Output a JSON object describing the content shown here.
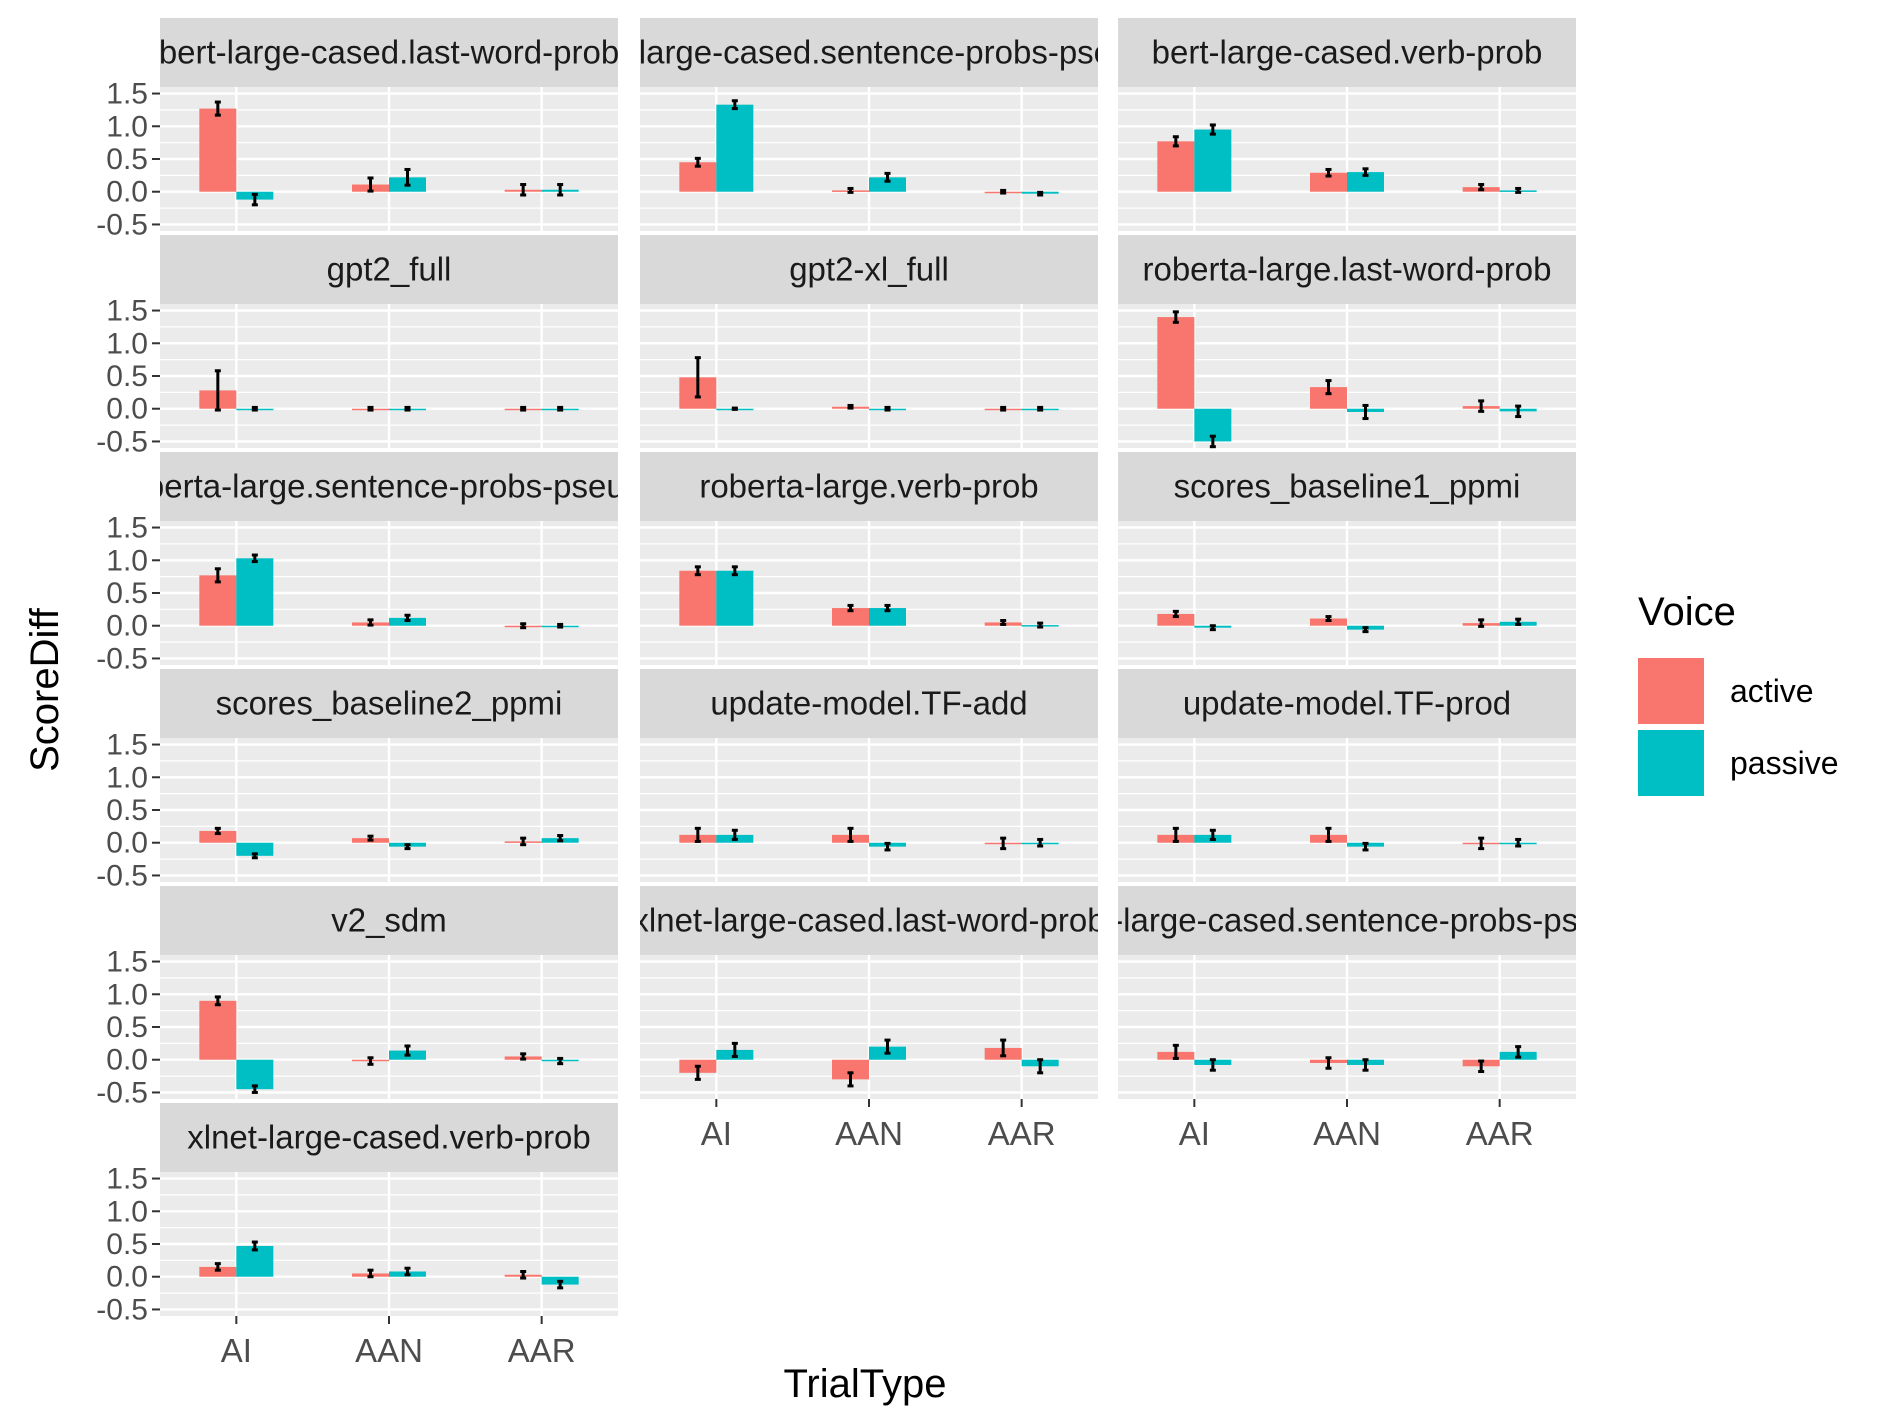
{
  "chart_data": {
    "type": "bar",
    "xlabel": "TrialType",
    "ylabel": "ScoreDiff",
    "categories": [
      "AI",
      "AAN",
      "AAR"
    ],
    "yticks": [
      "1.5",
      "1.0",
      "0.5",
      "0.0",
      "-0.5"
    ],
    "ylim": [
      -0.6,
      1.6
    ],
    "legend": {
      "title": "Voice",
      "position": "right",
      "entries": [
        "active",
        "passive"
      ]
    },
    "colors": {
      "active": "#F8766D",
      "passive": "#00BFC4",
      "panel_bg": "#EBEBEB",
      "strip_bg": "#D9D9D9"
    },
    "grid": true,
    "panels": [
      {
        "title": "bert-large-cased.last-word-prob",
        "active": [
          1.27,
          0.11,
          0.03
        ],
        "active_err": [
          0.1,
          0.1,
          0.08
        ],
        "passive": [
          -0.12,
          0.22,
          0.03
        ],
        "passive_err": [
          0.08,
          0.12,
          0.08
        ]
      },
      {
        "title": "bert-large-cased.sentence-probs-pseudo",
        "active": [
          0.45,
          0.02,
          0.0
        ],
        "active_err": [
          0.06,
          0.03,
          0.02
        ],
        "passive": [
          1.33,
          0.22,
          -0.03
        ],
        "passive_err": [
          0.06,
          0.06,
          0.02
        ]
      },
      {
        "title": "bert-large-cased.verb-prob",
        "active": [
          0.77,
          0.29,
          0.07
        ],
        "active_err": [
          0.07,
          0.05,
          0.04
        ],
        "passive": [
          0.95,
          0.3,
          0.02
        ],
        "passive_err": [
          0.07,
          0.05,
          0.03
        ]
      },
      {
        "title": "gpt2_full",
        "active": [
          0.28,
          0.0,
          0.0
        ],
        "active_err": [
          0.3,
          0.02,
          0.02
        ],
        "passive": [
          0.0,
          0.0,
          0.0
        ],
        "passive_err": [
          0.02,
          0.02,
          0.02
        ]
      },
      {
        "title": "gpt2-xl_full",
        "active": [
          0.48,
          0.03,
          0.0
        ],
        "active_err": [
          0.3,
          0.02,
          0.02
        ],
        "passive": [
          0.0,
          0.0,
          0.0
        ],
        "passive_err": [
          0.01,
          0.02,
          0.02
        ]
      },
      {
        "title": "roberta-large.last-word-prob",
        "active": [
          1.4,
          0.33,
          0.04
        ],
        "active_err": [
          0.08,
          0.1,
          0.08
        ],
        "passive": [
          -0.5,
          -0.05,
          -0.04
        ],
        "passive_err": [
          0.08,
          0.1,
          0.08
        ]
      },
      {
        "title": "roberta-large.sentence-probs-pseudo",
        "active": [
          0.77,
          0.05,
          0.0
        ],
        "active_err": [
          0.1,
          0.04,
          0.03
        ],
        "passive": [
          1.03,
          0.12,
          0.0
        ],
        "passive_err": [
          0.05,
          0.04,
          0.02
        ]
      },
      {
        "title": "roberta-large.verb-prob",
        "active": [
          0.84,
          0.27,
          0.05
        ],
        "active_err": [
          0.06,
          0.04,
          0.03
        ],
        "passive": [
          0.84,
          0.27,
          0.01
        ],
        "passive_err": [
          0.06,
          0.04,
          0.03
        ]
      },
      {
        "title": "scores_baseline1_ppmi",
        "active": [
          0.18,
          0.11,
          0.04
        ],
        "active_err": [
          0.04,
          0.03,
          0.05
        ],
        "passive": [
          -0.03,
          -0.06,
          0.06
        ],
        "passive_err": [
          0.03,
          0.03,
          0.04
        ]
      },
      {
        "title": "scores_baseline2_ppmi",
        "active": [
          0.18,
          0.07,
          0.02
        ],
        "active_err": [
          0.04,
          0.03,
          0.05
        ],
        "passive": [
          -0.2,
          -0.06,
          0.07
        ],
        "passive_err": [
          0.03,
          0.03,
          0.04
        ]
      },
      {
        "title": "update-model.TF-add",
        "active": [
          0.12,
          0.12,
          -0.01
        ],
        "active_err": [
          0.1,
          0.1,
          0.08
        ],
        "passive": [
          0.12,
          -0.06,
          0.0
        ],
        "passive_err": [
          0.07,
          0.05,
          0.05
        ]
      },
      {
        "title": "update-model.TF-prod",
        "active": [
          0.12,
          0.12,
          -0.01
        ],
        "active_err": [
          0.1,
          0.1,
          0.08
        ],
        "passive": [
          0.12,
          -0.06,
          0.0
        ],
        "passive_err": [
          0.07,
          0.05,
          0.05
        ]
      },
      {
        "title": "v2_sdm",
        "active": [
          0.9,
          -0.02,
          0.05
        ],
        "active_err": [
          0.06,
          0.05,
          0.04
        ],
        "passive": [
          -0.45,
          0.14,
          -0.02
        ],
        "passive_err": [
          0.05,
          0.07,
          0.04
        ]
      },
      {
        "title": "xlnet-large-cased.last-word-prob",
        "active": [
          -0.2,
          -0.3,
          0.18
        ],
        "active_err": [
          0.1,
          0.1,
          0.12
        ],
        "passive": [
          0.15,
          0.2,
          -0.1
        ],
        "passive_err": [
          0.1,
          0.1,
          0.1
        ]
      },
      {
        "title": "xlnet-large-cased.sentence-probs-pseudo",
        "active": [
          0.12,
          -0.05,
          -0.1
        ],
        "active_err": [
          0.1,
          0.08,
          0.08
        ],
        "passive": [
          -0.08,
          -0.08,
          0.12
        ],
        "passive_err": [
          0.08,
          0.08,
          0.08
        ]
      },
      {
        "title": "xlnet-large-cased.verb-prob",
        "active": [
          0.15,
          0.05,
          0.03
        ],
        "active_err": [
          0.05,
          0.05,
          0.05
        ],
        "passive": [
          0.47,
          0.08,
          -0.12
        ],
        "passive_err": [
          0.06,
          0.05,
          0.05
        ]
      }
    ]
  }
}
